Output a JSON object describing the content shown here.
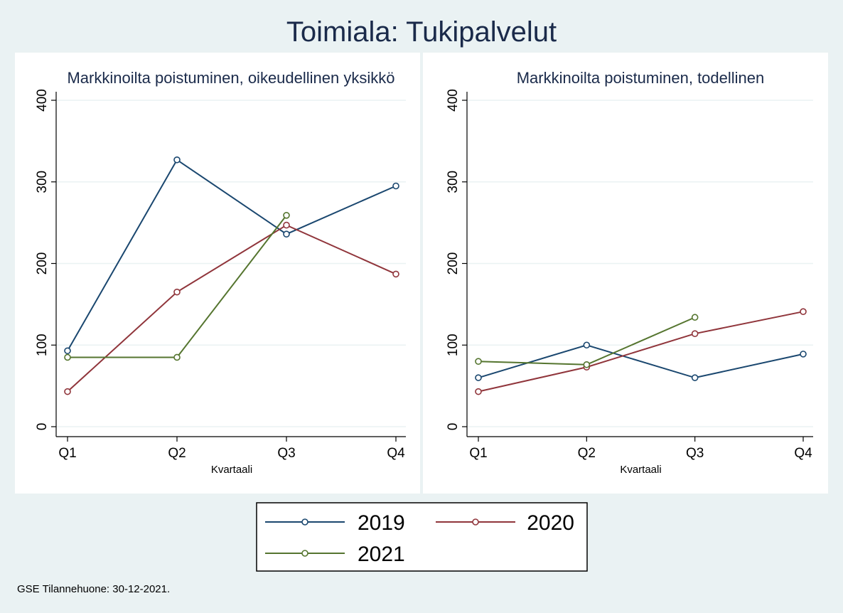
{
  "title": "Toimiala: Tukipalvelut",
  "footnote": "GSE Tilannehuone: 30-12-2021.",
  "colors": {
    "2019": "#1a476f",
    "2020": "#90353b",
    "2021": "#55752f"
  },
  "chart_data": [
    {
      "type": "line",
      "title": "Markkinoilta poistuminen, oikeudellinen yksikkö",
      "xlabel": "Kvartaali",
      "ylabel": "",
      "categories": [
        "Q1",
        "Q2",
        "Q3",
        "Q4"
      ],
      "ylim": [
        0,
        400
      ],
      "yticks": [
        0,
        100,
        200,
        300,
        400
      ],
      "grid": true,
      "series": [
        {
          "name": "2019",
          "values": [
            93,
            327,
            236,
            295
          ]
        },
        {
          "name": "2020",
          "values": [
            43,
            165,
            247,
            187
          ]
        },
        {
          "name": "2021",
          "values": [
            85,
            85,
            259,
            null
          ]
        }
      ]
    },
    {
      "type": "line",
      "title": "Markkinoilta poistuminen, todellinen",
      "xlabel": "Kvartaali",
      "ylabel": "",
      "categories": [
        "Q1",
        "Q2",
        "Q3",
        "Q4"
      ],
      "ylim": [
        0,
        400
      ],
      "yticks": [
        0,
        100,
        200,
        300,
        400
      ],
      "grid": true,
      "series": [
        {
          "name": "2019",
          "values": [
            60,
            100,
            60,
            89
          ]
        },
        {
          "name": "2020",
          "values": [
            43,
            73,
            114,
            141
          ]
        },
        {
          "name": "2021",
          "values": [
            80,
            76,
            134,
            null
          ]
        }
      ]
    }
  ],
  "legend": {
    "placement": "bottom",
    "items": [
      {
        "label": "2019"
      },
      {
        "label": "2020"
      },
      {
        "label": "2021"
      }
    ]
  }
}
